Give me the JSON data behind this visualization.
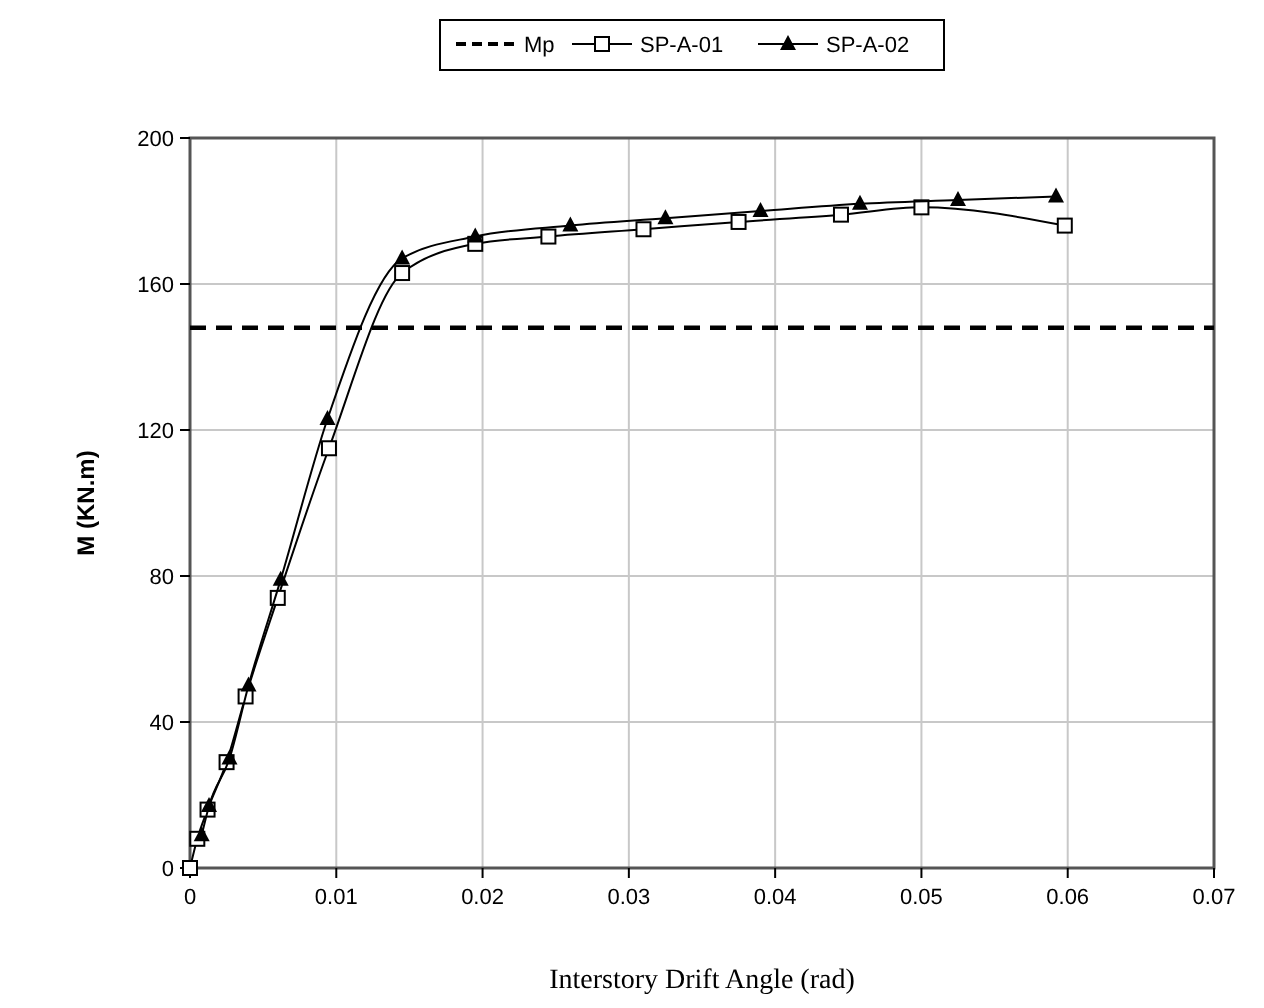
{
  "chart_data": {
    "type": "line",
    "xlabel": "Interstory Drift Angle (rad)",
    "ylabel": "M (KN.m)",
    "xlim": [
      0,
      0.07
    ],
    "xticks": [
      0,
      0.01,
      0.02,
      0.03,
      0.04,
      0.05,
      0.06,
      0.07
    ],
    "ylim": [
      0,
      200
    ],
    "yticks": [
      0,
      40,
      80,
      120,
      160,
      200
    ],
    "grid": true,
    "legend": "top",
    "series": [
      {
        "name": "Mp",
        "color": "#000000",
        "line_style": "dashed",
        "marker": "none",
        "x": [
          0,
          0.07
        ],
        "values": [
          148,
          148
        ]
      },
      {
        "name": "SP-A-01",
        "color": "#000000",
        "marker": "square",
        "x": [
          0,
          0.0005,
          0.0012,
          0.0025,
          0.0038,
          0.006,
          0.0095,
          0.0145,
          0.0195,
          0.0245,
          0.031,
          0.0375,
          0.0445,
          0.05,
          0.0598
        ],
        "values": [
          0,
          8,
          16,
          29,
          47,
          74,
          115,
          163,
          171,
          173,
          175,
          177,
          179,
          181,
          176
        ]
      },
      {
        "name": "SP-A-02",
        "color": "#000000",
        "marker": "triangle",
        "x": [
          0.0008,
          0.0013,
          0.0027,
          0.004,
          0.0062,
          0.0094,
          0.0145,
          0.0195,
          0.026,
          0.0325,
          0.039,
          0.0458,
          0.0525,
          0.0592
        ],
        "values": [
          9,
          17,
          30,
          50,
          79,
          123,
          167,
          173,
          176,
          178,
          180,
          182,
          183,
          184
        ]
      }
    ]
  }
}
